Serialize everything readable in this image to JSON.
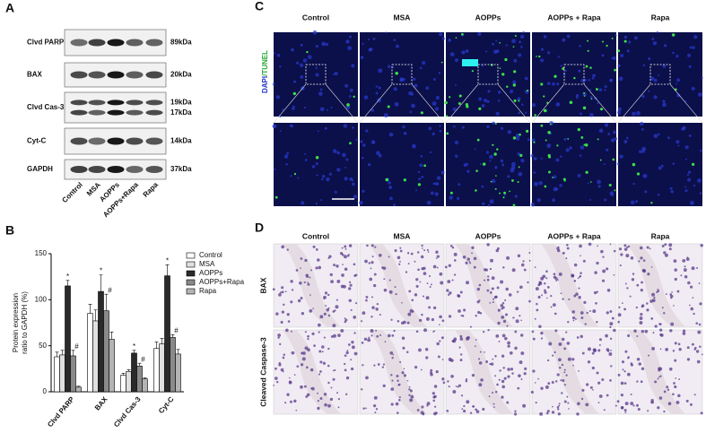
{
  "panel_a": {
    "letter": "A",
    "rows": [
      {
        "name": "Clvd PARP",
        "sizes": [
          "89kDa"
        ]
      },
      {
        "name": "BAX",
        "sizes": [
          "20kDa"
        ]
      },
      {
        "name": "Clvd Cas-3",
        "sizes": [
          "19kDa",
          "17kDa"
        ]
      },
      {
        "name": "Cyt-C",
        "sizes": [
          "14kDa"
        ]
      },
      {
        "name": "GAPDH",
        "sizes": [
          "37kDa"
        ]
      }
    ],
    "lanes": [
      "Control",
      "MSA",
      "AOPPs",
      "AOPPs+Rapa",
      "Rapa"
    ]
  },
  "chart_data": {
    "type": "bar",
    "letter": "B",
    "ylabel": [
      "Protein expression",
      "ratio to GAPDH (%)"
    ],
    "categories": [
      "Clvd PARP",
      "BAX",
      "Clvd Cas-3",
      "Cyt-C"
    ],
    "series": [
      {
        "name": "Control",
        "color": "#ffffff",
        "values": [
          38,
          85,
          18,
          47
        ],
        "errors": [
          5,
          10,
          2,
          7
        ]
      },
      {
        "name": "MSA",
        "color": "#e0e0e0",
        "values": [
          40,
          77,
          22,
          52
        ],
        "errors": [
          5,
          12,
          2,
          6
        ]
      },
      {
        "name": "AOPPs",
        "color": "#2a2a2a",
        "values": [
          115,
          109,
          42,
          126
        ],
        "errors": [
          6,
          18,
          3,
          12
        ],
        "marker": "*"
      },
      {
        "name": "AOPPs+Rapa",
        "color": "#8a8a8a",
        "values": [
          39,
          88,
          28,
          59
        ],
        "errors": [
          6,
          18,
          3,
          3
        ],
        "marker": "#"
      },
      {
        "name": "Rapa",
        "color": "#b4b4b4",
        "values": [
          5,
          57,
          14,
          41
        ],
        "errors": [
          1,
          8,
          1,
          5
        ]
      }
    ],
    "ylim": [
      0,
      150
    ],
    "yticks": [
      0,
      50,
      100,
      150
    ]
  },
  "panel_c": {
    "letter": "C",
    "columns": [
      "Control",
      "MSA",
      "AOPPs",
      "AOPPs + Rapa",
      "Rapa"
    ],
    "stain": [
      "DAPI",
      "/TUNEL"
    ]
  },
  "panel_d": {
    "letter": "D",
    "columns": [
      "Control",
      "MSA",
      "AOPPs",
      "AOPPs + Rapa",
      "Rapa"
    ],
    "rows": [
      "BAX",
      "Cleaved Caspase-3"
    ]
  }
}
